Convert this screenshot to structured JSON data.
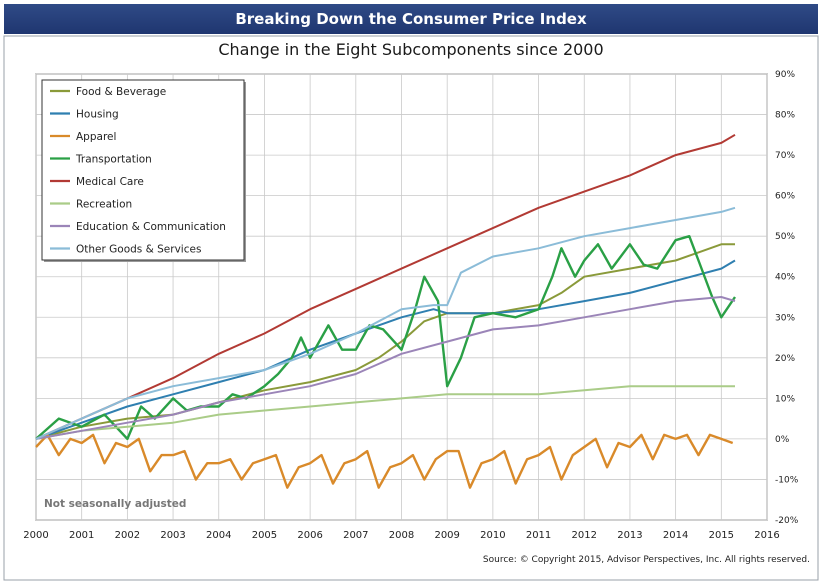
{
  "header": {
    "title": "Breaking Down the Consumer Price Index"
  },
  "chart_data": {
    "type": "line",
    "title": "Change in the Eight Subcomponents since 2000",
    "xlim": [
      2000,
      2016
    ],
    "ylim": [
      -20,
      90
    ],
    "x_ticks": [
      "2000",
      "2001",
      "2002",
      "2003",
      "2004",
      "2005",
      "2006",
      "2007",
      "2008",
      "2009",
      "2010",
      "2011",
      "2012",
      "2013",
      "2014",
      "2015",
      "2016"
    ],
    "y_ticks": [
      "-20%",
      "-10%",
      "0%",
      "10%",
      "20%",
      "30%",
      "40%",
      "50%",
      "60%",
      "70%",
      "80%",
      "90%"
    ],
    "y_unit": "%",
    "grid": true,
    "legend_position": "top-left",
    "annotation": "Not seasonally adjusted",
    "source": "Source: © Copyright 2015, Advisor Perspectives, Inc. All rights reserved.",
    "series": [
      {
        "name": "Food & Beverage",
        "color": "#8a9a3a",
        "x": [
          2000,
          2001,
          2002,
          2003,
          2004,
          2005,
          2006,
          2007,
          2007.5,
          2008,
          2008.5,
          2009,
          2009.5,
          2010,
          2011,
          2011.5,
          2012,
          2013,
          2014,
          2014.5,
          2015,
          2015.3
        ],
        "y": [
          0,
          3,
          5,
          6,
          9,
          12,
          14,
          17,
          20,
          24,
          29,
          31,
          31,
          31,
          33,
          36,
          40,
          42,
          44,
          46,
          48,
          48
        ]
      },
      {
        "name": "Housing",
        "color": "#2f7fb0",
        "x": [
          2000,
          2001,
          2002,
          2003,
          2004,
          2005,
          2006,
          2007,
          2008,
          2008.7,
          2009,
          2010,
          2011,
          2012,
          2013,
          2014,
          2015,
          2015.3
        ],
        "y": [
          0,
          4,
          8,
          11,
          14,
          17,
          22,
          26,
          30,
          32,
          31,
          31,
          32,
          34,
          36,
          39,
          42,
          44
        ]
      },
      {
        "name": "Apparel",
        "color": "#d98a2a",
        "x": [
          2000,
          2000.25,
          2000.5,
          2000.75,
          2001,
          2001.25,
          2001.5,
          2001.75,
          2002,
          2002.25,
          2002.5,
          2002.75,
          2003,
          2003.25,
          2003.5,
          2003.75,
          2004,
          2004.25,
          2004.5,
          2004.75,
          2005,
          2005.25,
          2005.5,
          2005.75,
          2006,
          2006.25,
          2006.5,
          2006.75,
          2007,
          2007.25,
          2007.5,
          2007.75,
          2008,
          2008.25,
          2008.5,
          2008.75,
          2009,
          2009.25,
          2009.5,
          2009.75,
          2010,
          2010.25,
          2010.5,
          2010.75,
          2011,
          2011.25,
          2011.5,
          2011.75,
          2012,
          2012.25,
          2012.5,
          2012.75,
          2013,
          2013.25,
          2013.5,
          2013.75,
          2014,
          2014.25,
          2014.5,
          2014.75,
          2015,
          2015.25
        ],
        "y": [
          -2,
          1,
          -4,
          0,
          -1,
          1,
          -6,
          -1,
          -2,
          0,
          -8,
          -4,
          -4,
          -3,
          -10,
          -6,
          -6,
          -5,
          -10,
          -6,
          -5,
          -4,
          -12,
          -7,
          -6,
          -4,
          -11,
          -6,
          -5,
          -3,
          -12,
          -7,
          -6,
          -4,
          -10,
          -5,
          -3,
          -3,
          -12,
          -6,
          -5,
          -3,
          -11,
          -5,
          -4,
          -2,
          -10,
          -4,
          -2,
          0,
          -7,
          -1,
          -2,
          1,
          -5,
          1,
          0,
          1,
          -4,
          1,
          0,
          -1
        ]
      },
      {
        "name": "Transportation",
        "color": "#2aa046",
        "x": [
          2000,
          2000.5,
          2001,
          2001.5,
          2002,
          2002.3,
          2002.6,
          2003,
          2003.3,
          2003.6,
          2004,
          2004.3,
          2004.6,
          2005,
          2005.3,
          2005.6,
          2005.8,
          2006,
          2006.4,
          2006.7,
          2007,
          2007.3,
          2007.6,
          2008,
          2008.3,
          2008.5,
          2008.8,
          2009,
          2009.3,
          2009.6,
          2010,
          2010.5,
          2011,
          2011.3,
          2011.5,
          2011.8,
          2012,
          2012.3,
          2012.6,
          2013,
          2013.3,
          2013.6,
          2014,
          2014.3,
          2014.5,
          2014.8,
          2015,
          2015.3
        ],
        "y": [
          0,
          5,
          3,
          6,
          0,
          8,
          5,
          10,
          7,
          8,
          8,
          11,
          10,
          13,
          16,
          20,
          25,
          20,
          28,
          22,
          22,
          28,
          27,
          22,
          32,
          40,
          34,
          13,
          20,
          30,
          31,
          30,
          32,
          40,
          47,
          40,
          44,
          48,
          42,
          48,
          43,
          42,
          49,
          50,
          44,
          35,
          30,
          35
        ]
      },
      {
        "name": "Medical Care",
        "color": "#b23a34",
        "x": [
          2000,
          2001,
          2002,
          2003,
          2004,
          2005,
          2006,
          2007,
          2008,
          2009,
          2010,
          2011,
          2012,
          2013,
          2014,
          2015,
          2015.3
        ],
        "y": [
          0,
          5,
          10,
          15,
          21,
          26,
          32,
          37,
          42,
          47,
          52,
          57,
          61,
          65,
          70,
          73,
          75
        ]
      },
      {
        "name": "Recreation",
        "color": "#aacc88",
        "x": [
          2000,
          2001,
          2002,
          2003,
          2004,
          2005,
          2006,
          2007,
          2008,
          2009,
          2010,
          2011,
          2012,
          2013,
          2014,
          2015,
          2015.3
        ],
        "y": [
          0,
          2,
          3,
          4,
          6,
          7,
          8,
          9,
          10,
          11,
          11,
          11,
          12,
          13,
          13,
          13,
          13
        ]
      },
      {
        "name": "Education & Communication",
        "color": "#9b85b8",
        "x": [
          2000,
          2001,
          2002,
          2003,
          2004,
          2005,
          2006,
          2007,
          2008,
          2009,
          2010,
          2011,
          2012,
          2013,
          2014,
          2015,
          2015.3
        ],
        "y": [
          0,
          2,
          4,
          6,
          9,
          11,
          13,
          16,
          21,
          24,
          27,
          28,
          30,
          32,
          34,
          35,
          34
        ]
      },
      {
        "name": "Other Goods & Services",
        "color": "#8bbcd8",
        "x": [
          2000,
          2001,
          2002,
          2003,
          2004,
          2005,
          2006,
          2007,
          2008,
          2008.7,
          2009,
          2009.3,
          2010,
          2011,
          2012,
          2013,
          2014,
          2015,
          2015.3
        ],
        "y": [
          0,
          5,
          10,
          13,
          15,
          17,
          21,
          26,
          32,
          33,
          33,
          41,
          45,
          47,
          50,
          52,
          54,
          56,
          57
        ]
      }
    ]
  }
}
